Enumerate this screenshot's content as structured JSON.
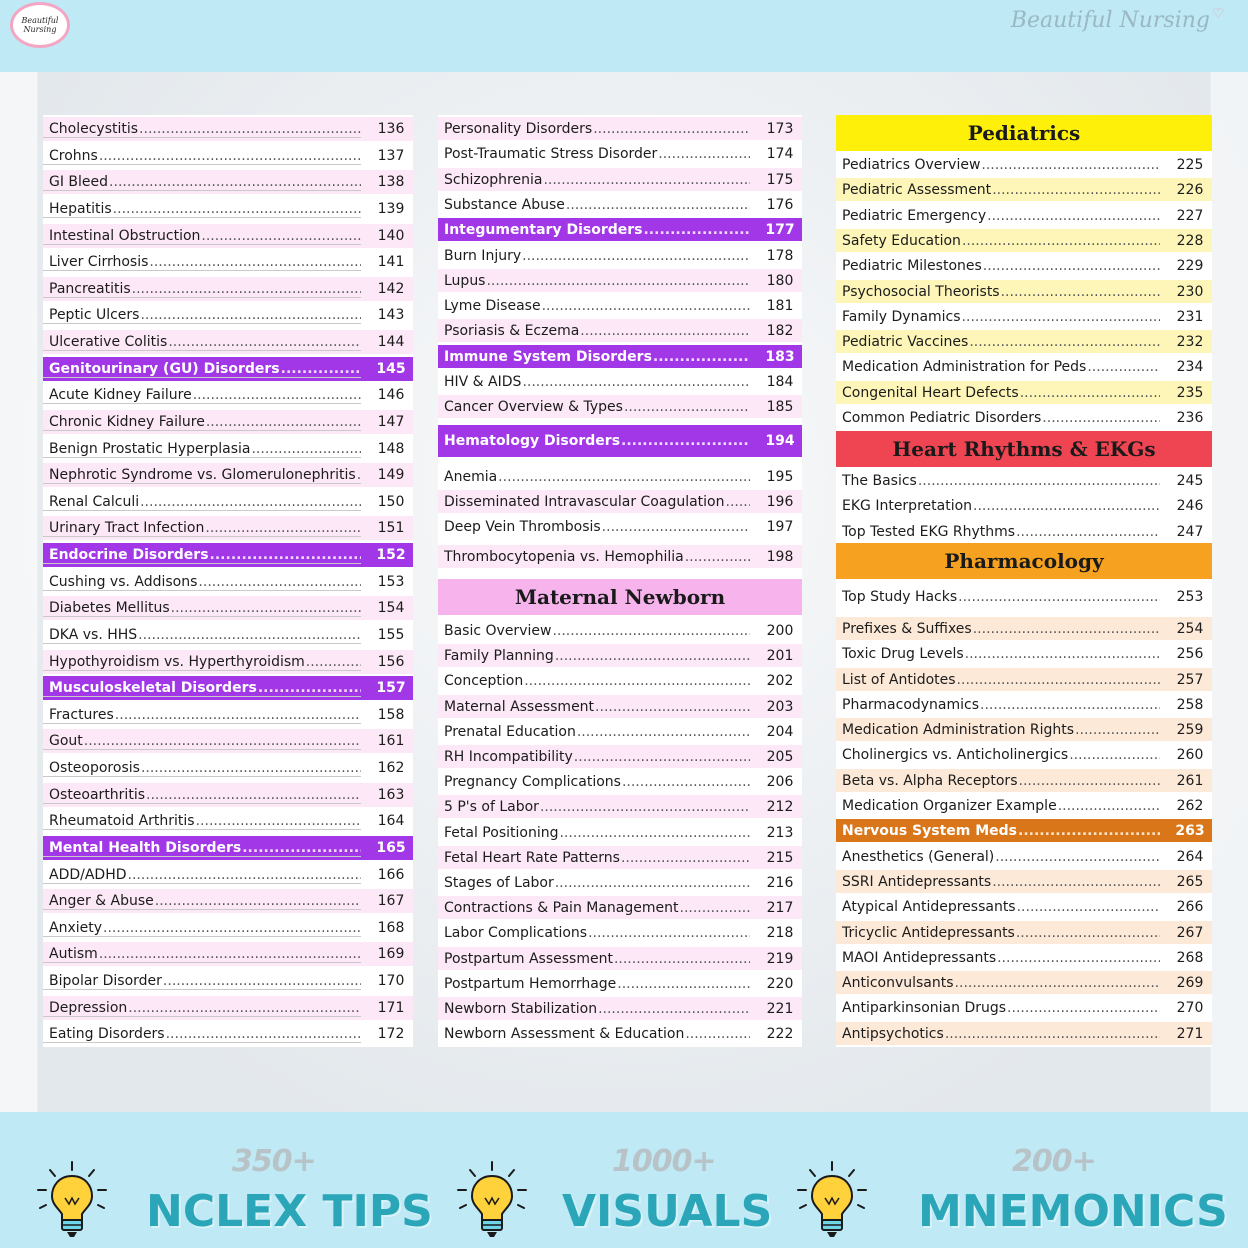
{
  "header": {
    "logo_text": "Beautiful Nursing",
    "brand": "Beautiful Nursing"
  },
  "colors": {
    "pink_row": "#fce8f7",
    "purple_section": "#a237e8",
    "yellow_row": "#fdf6b8",
    "peach_row": "#fde9d8",
    "orange_section": "#d9761a",
    "pediatrics_header": "#fff009",
    "heart_header": "#ef4452",
    "pharm_header": "#f6a11f",
    "maternal_header": "#f6b3ec",
    "stat_text": "#2aa6b8"
  },
  "column1": [
    {
      "label": "Cholecystitis",
      "page": "136",
      "style": "pink"
    },
    {
      "label": "Crohns",
      "page": "137",
      "style": "white"
    },
    {
      "label": "GI Bleed",
      "page": "138",
      "style": "pink"
    },
    {
      "label": "Hepatitis",
      "page": "139",
      "style": "white"
    },
    {
      "label": "Intestinal Obstruction",
      "page": "140",
      "style": "pink"
    },
    {
      "label": "Liver Cirrhosis",
      "page": "141",
      "style": "white"
    },
    {
      "label": "Pancreatitis",
      "page": "142",
      "style": "pink"
    },
    {
      "label": "Peptic Ulcers",
      "page": "143",
      "style": "white"
    },
    {
      "label": "Ulcerative Colitis",
      "page": "144",
      "style": "pink"
    },
    {
      "label": "Genitourinary (GU) Disorders",
      "page": "145",
      "style": "purple"
    },
    {
      "label": "Acute Kidney Failure",
      "page": "146",
      "style": "white"
    },
    {
      "label": "Chronic Kidney Failure",
      "page": "147",
      "style": "pink"
    },
    {
      "label": "Benign Prostatic Hyperplasia",
      "page": "148",
      "style": "white"
    },
    {
      "label": "Nephrotic Syndrome vs. Glomerulonephritis",
      "page": "149",
      "style": "pink"
    },
    {
      "label": "Renal Calculi",
      "page": "150",
      "style": "white"
    },
    {
      "label": "Urinary Tract Infection",
      "page": "151",
      "style": "pink"
    },
    {
      "label": "Endocrine Disorders",
      "page": "152",
      "style": "purple"
    },
    {
      "label": "Cushing vs. Addisons",
      "page": "153",
      "style": "white"
    },
    {
      "label": "Diabetes Mellitus",
      "page": "154",
      "style": "pink"
    },
    {
      "label": "DKA vs. HHS",
      "page": "155",
      "style": "white"
    },
    {
      "label": "Hypothyroidism vs. Hyperthyroidism",
      "page": "156",
      "style": "pink"
    },
    {
      "label": "Musculoskeletal Disorders",
      "page": "157",
      "style": "purple"
    },
    {
      "label": "Fractures",
      "page": "158",
      "style": "white"
    },
    {
      "label": "Gout",
      "page": "161",
      "style": "pink"
    },
    {
      "label": "Osteoporosis",
      "page": "162",
      "style": "white"
    },
    {
      "label": "Osteoarthritis",
      "page": "163",
      "style": "pink"
    },
    {
      "label": "Rheumatoid Arthritis",
      "page": "164",
      "style": "white"
    },
    {
      "label": "Mental Health Disorders",
      "page": "165",
      "style": "purple"
    },
    {
      "label": "ADD/ADHD",
      "page": "166",
      "style": "white"
    },
    {
      "label": "Anger & Abuse",
      "page": "167",
      "style": "pink"
    },
    {
      "label": "Anxiety",
      "page": "168",
      "style": "white"
    },
    {
      "label": "Autism",
      "page": "169",
      "style": "pink"
    },
    {
      "label": "Bipolar Disorder",
      "page": "170",
      "style": "white"
    },
    {
      "label": "Depression",
      "page": "171",
      "style": "pink"
    },
    {
      "label": "Eating Disorders",
      "page": "172",
      "style": "white"
    }
  ],
  "column2": [
    {
      "label": "Personality Disorders",
      "page": "173",
      "style": "pink"
    },
    {
      "label": "Post-Traumatic Stress Disorder",
      "page": "174",
      "style": "white"
    },
    {
      "label": "Schizophrenia",
      "page": "175",
      "style": "pink"
    },
    {
      "label": "Substance Abuse",
      "page": "176",
      "style": "white"
    },
    {
      "label": "Integumentary Disorders",
      "page": "177",
      "style": "purple"
    },
    {
      "label": "Burn Injury",
      "page": "178",
      "style": "white"
    },
    {
      "label": "Lupus",
      "page": "180",
      "style": "pink"
    },
    {
      "label": "Lyme Disease",
      "page": "181",
      "style": "white"
    },
    {
      "label": "Psoriasis & Eczema",
      "page": "182",
      "style": "pink"
    },
    {
      "label": "Immune System Disorders",
      "page": "183",
      "style": "purple"
    },
    {
      "label": "HIV & AIDS",
      "page": "184",
      "style": "white"
    },
    {
      "label": "Cancer Overview & Types",
      "page": "185",
      "style": "pink"
    },
    {
      "label": "Hematology Disorders",
      "page": "194",
      "style": "purple"
    },
    {
      "label": "Anemia",
      "page": "195",
      "style": "white"
    },
    {
      "label": "Disseminated Intravascular Coagulation",
      "page": "196",
      "style": "pink"
    },
    {
      "label": "Deep Vein Thrombosis",
      "page": "197",
      "style": "white"
    },
    {
      "label": "Thrombocytopenia vs. Hemophilia",
      "page": "198",
      "style": "pink"
    }
  ],
  "maternal": {
    "title": "Maternal Newborn",
    "items": [
      {
        "label": "Basic Overview",
        "page": "200",
        "style": "white"
      },
      {
        "label": "Family Planning",
        "page": "201",
        "style": "pink"
      },
      {
        "label": "Conception",
        "page": "202",
        "style": "white"
      },
      {
        "label": "Maternal Assessment",
        "page": "203",
        "style": "pink"
      },
      {
        "label": "Prenatal Education",
        "page": "204",
        "style": "white"
      },
      {
        "label": "RH Incompatibility",
        "page": "205",
        "style": "pink"
      },
      {
        "label": "Pregnancy Complications",
        "page": "206",
        "style": "white"
      },
      {
        "label": "5 P's of Labor",
        "page": "212",
        "style": "pink"
      },
      {
        "label": "Fetal Positioning",
        "page": "213",
        "style": "white"
      },
      {
        "label": "Fetal Heart Rate Patterns",
        "page": "215",
        "style": "pink"
      },
      {
        "label": "Stages of Labor",
        "page": "216",
        "style": "white"
      },
      {
        "label": "Contractions & Pain Management",
        "page": "217",
        "style": "pink"
      },
      {
        "label": "Labor Complications",
        "page": "218",
        "style": "white"
      },
      {
        "label": "Postpartum Assessment",
        "page": "219",
        "style": "pink"
      },
      {
        "label": "Postpartum Hemorrhage",
        "page": "220",
        "style": "white"
      },
      {
        "label": "Newborn Stabilization",
        "page": "221",
        "style": "pink"
      },
      {
        "label": "Newborn Assessment & Education",
        "page": "222",
        "style": "white"
      }
    ]
  },
  "pediatrics": {
    "title": "Pediatrics",
    "items": [
      {
        "label": "Pediatrics Overview",
        "page": "225",
        "style": "white"
      },
      {
        "label": "Pediatric Assessment",
        "page": "226",
        "style": "yellow"
      },
      {
        "label": "Pediatric Emergency",
        "page": "227",
        "style": "white"
      },
      {
        "label": "Safety Education",
        "page": "228",
        "style": "yellow"
      },
      {
        "label": "Pediatric Milestones",
        "page": "229",
        "style": "white"
      },
      {
        "label": "Psychosocial Theorists",
        "page": "230",
        "style": "yellow"
      },
      {
        "label": "Family Dynamics",
        "page": "231",
        "style": "white"
      },
      {
        "label": "Pediatric Vaccines",
        "page": "232",
        "style": "yellow"
      },
      {
        "label": "Medication Administration for Peds",
        "page": "234",
        "style": "white"
      },
      {
        "label": "Congenital Heart Defects",
        "page": "235",
        "style": "yellow"
      },
      {
        "label": "Common Pediatric Disorders",
        "page": "236",
        "style": "white"
      }
    ]
  },
  "heart": {
    "title": "Heart Rhythms & EKGs",
    "items": [
      {
        "label": "The Basics",
        "page": "245",
        "style": "white"
      },
      {
        "label": "EKG Interpretation",
        "page": "246",
        "style": "white"
      },
      {
        "label": "Top Tested EKG Rhythms",
        "page": "247",
        "style": "white"
      }
    ]
  },
  "pharmacology": {
    "title": "Pharmacology",
    "items": [
      {
        "label": "Top Study Hacks",
        "page": "253",
        "style": "white"
      },
      {
        "label": "Prefixes & Suffixes",
        "page": "254",
        "style": "peach"
      },
      {
        "label": "Toxic Drug Levels",
        "page": "256",
        "style": "white"
      },
      {
        "label": "List of Antidotes",
        "page": "257",
        "style": "peach"
      },
      {
        "label": "Pharmacodynamics",
        "page": "258",
        "style": "white"
      },
      {
        "label": "Medication Administration Rights",
        "page": "259",
        "style": "peach"
      },
      {
        "label": "Cholinergics vs. Anticholinergics",
        "page": "260",
        "style": "white"
      },
      {
        "label": "Beta vs. Alpha Receptors",
        "page": "261",
        "style": "peach"
      },
      {
        "label": "Medication Organizer Example",
        "page": "262",
        "style": "white"
      },
      {
        "label": "Nervous System Meds",
        "page": "263",
        "style": "orange"
      },
      {
        "label": "Anesthetics (General)",
        "page": "264",
        "style": "white"
      },
      {
        "label": "SSRI Antidepressants",
        "page": "265",
        "style": "peach"
      },
      {
        "label": "Atypical Antidepressants",
        "page": "266",
        "style": "white"
      },
      {
        "label": "Tricyclic Antidepressants",
        "page": "267",
        "style": "peach"
      },
      {
        "label": "MAOI Antidepressants",
        "page": "268",
        "style": "white"
      },
      {
        "label": "Anticonvulsants",
        "page": "269",
        "style": "peach"
      },
      {
        "label": "Antiparkinsonian Drugs",
        "page": "270",
        "style": "white"
      },
      {
        "label": "Antipsychotics",
        "page": "271",
        "style": "peach"
      }
    ]
  },
  "stats": [
    {
      "number": "350+",
      "word": "NCLEX TIPS",
      "icon": "lightbulb-icon"
    },
    {
      "number": "1000+",
      "word": "VISUALS",
      "icon": "lightbulb-icon"
    },
    {
      "number": "200+",
      "word": "MNEMONICS",
      "icon": "lightbulb-icon"
    }
  ]
}
